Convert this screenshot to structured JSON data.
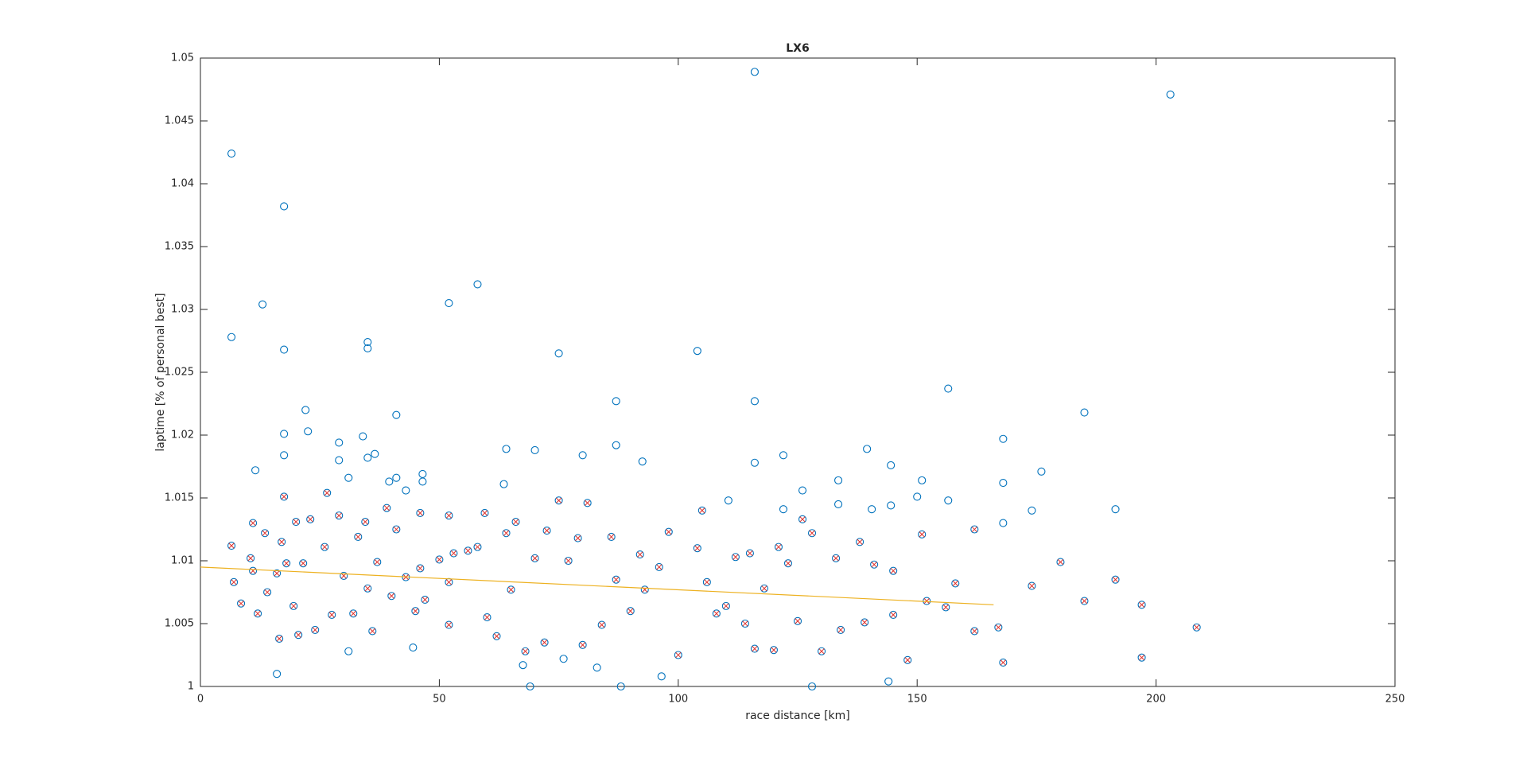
{
  "chart_data": {
    "type": "scatter",
    "title": "LX6",
    "xlabel": "race distance [km]",
    "ylabel": "laptime [% of personal best]",
    "xlim": [
      0,
      250
    ],
    "ylim": [
      1,
      1.05
    ],
    "xticks": [
      0,
      50,
      100,
      150,
      200,
      250
    ],
    "yticks": [
      1,
      1.005,
      1.01,
      1.015,
      1.02,
      1.025,
      1.03,
      1.035,
      1.04,
      1.045,
      1.05
    ],
    "grid": false,
    "series": [
      {
        "marker": "o",
        "color": "#0072bd",
        "x": [
          6.5,
          6.5,
          17.5,
          13,
          17.5,
          22,
          22.5,
          17.5,
          17.5,
          11.5,
          16,
          29,
          29,
          31,
          34,
          35,
          35,
          35,
          36.5,
          41,
          41,
          39.5,
          43,
          46.5,
          46.5,
          52,
          58,
          31,
          44.5,
          64,
          63.5,
          70,
          75,
          69,
          76,
          80,
          67.5,
          83,
          87,
          87,
          88,
          92.5,
          96.5,
          104,
          110.5,
          116,
          116,
          116,
          122,
          122,
          126,
          128,
          133.5,
          133.5,
          139.5,
          140.5,
          144.5,
          144.5,
          144,
          150,
          151,
          156.5,
          156.5,
          168,
          168,
          168,
          174,
          176,
          185,
          191.5,
          203
        ],
        "values": [
          1.0424,
          1.0278,
          1.0382,
          1.0304,
          1.0268,
          1.022,
          1.0203,
          1.0201,
          1.0184,
          1.0172,
          1.001,
          1.0194,
          1.018,
          1.0166,
          1.0199,
          1.0274,
          1.0269,
          1.0182,
          1.0185,
          1.0216,
          1.0166,
          1.0163,
          1.0156,
          1.0169,
          1.0163,
          1.0305,
          1.032,
          1.0028,
          1.0031,
          1.0189,
          1.0161,
          1.0188,
          1.0265,
          1,
          1.0022,
          1.0184,
          1.0017,
          1.0015,
          1.0227,
          1.0192,
          1,
          1.0179,
          1.0008,
          1.0267,
          1.0148,
          1.0489,
          1.0227,
          1.0178,
          1.0184,
          1.0141,
          1.0156,
          1,
          1.0164,
          1.0145,
          1.0189,
          1.0141,
          1.0176,
          1.0144,
          1.0004,
          1.0151,
          1.0164,
          1.0237,
          1.0148,
          1.0197,
          1.0162,
          1.013,
          1.014,
          1.0171,
          1.0218,
          1.0141,
          1.0471
        ]
      },
      {
        "marker": "ox",
        "color": "#0072bd",
        "cross_color": "#e0302a",
        "x": [
          6.5,
          7,
          8.5,
          10.5,
          11,
          11,
          12,
          13.5,
          14,
          16,
          16.5,
          17,
          17.5,
          18,
          19.5,
          20,
          20.5,
          21.5,
          23,
          24,
          26,
          26.5,
          27.5,
          29,
          30,
          32,
          33,
          34.5,
          35,
          36,
          37,
          39,
          40,
          41,
          43,
          45,
          46,
          46,
          47,
          50,
          52,
          52,
          52,
          53,
          56,
          58,
          59.5,
          60,
          62,
          64,
          65,
          66,
          68,
          70,
          72,
          72.5,
          75,
          77,
          79,
          80,
          81,
          84,
          86,
          87,
          90,
          92,
          93,
          96,
          98,
          100,
          104,
          105,
          106,
          108,
          112,
          114,
          115,
          116,
          118,
          120,
          121,
          123,
          126,
          128,
          130,
          133,
          134,
          138,
          141,
          145,
          148,
          151,
          152,
          156,
          158,
          162,
          167,
          174,
          180,
          185,
          191.5,
          197,
          197,
          208.5,
          168,
          162,
          145,
          139,
          125,
          110
        ],
        "values": [
          1.0112,
          1.0083,
          1.0066,
          1.0102,
          1.013,
          1.0092,
          1.0058,
          1.0122,
          1.0075,
          1.009,
          1.0038,
          1.0115,
          1.0151,
          1.0098,
          1.0064,
          1.0131,
          1.0041,
          1.0098,
          1.0133,
          1.0045,
          1.0111,
          1.0154,
          1.0057,
          1.0136,
          1.0088,
          1.0058,
          1.0119,
          1.0131,
          1.0078,
          1.0044,
          1.0099,
          1.0142,
          1.0072,
          1.0125,
          1.0087,
          1.006,
          1.0138,
          1.0094,
          1.0069,
          1.0101,
          1.0136,
          1.0083,
          1.0049,
          1.0106,
          1.0108,
          1.0111,
          1.0138,
          1.0055,
          1.004,
          1.0122,
          1.0077,
          1.0131,
          1.0028,
          1.0102,
          1.0035,
          1.0124,
          1.0148,
          1.01,
          1.0118,
          1.0033,
          1.0146,
          1.0049,
          1.0119,
          1.0085,
          1.006,
          1.0105,
          1.0077,
          1.0095,
          1.0123,
          1.0025,
          1.011,
          1.014,
          1.0083,
          1.0058,
          1.0103,
          1.005,
          1.0106,
          1.003,
          1.0078,
          1.0029,
          1.0111,
          1.0098,
          1.0133,
          1.0122,
          1.0028,
          1.0102,
          1.0045,
          1.0115,
          1.0097,
          1.0092,
          1.0021,
          1.0121,
          1.0068,
          1.0063,
          1.0082,
          1.0125,
          1.0047,
          1.008,
          1.0099,
          1.0068,
          1.0085,
          1.0065,
          1.0023,
          1.0047,
          1.0019,
          1.0044,
          1.0057,
          1.0051,
          1.0052,
          1.0064
        ]
      },
      {
        "marker": "line",
        "color": "#edb120",
        "x": [
          0,
          166
        ],
        "values": [
          1.0095,
          1.0065
        ]
      }
    ]
  }
}
